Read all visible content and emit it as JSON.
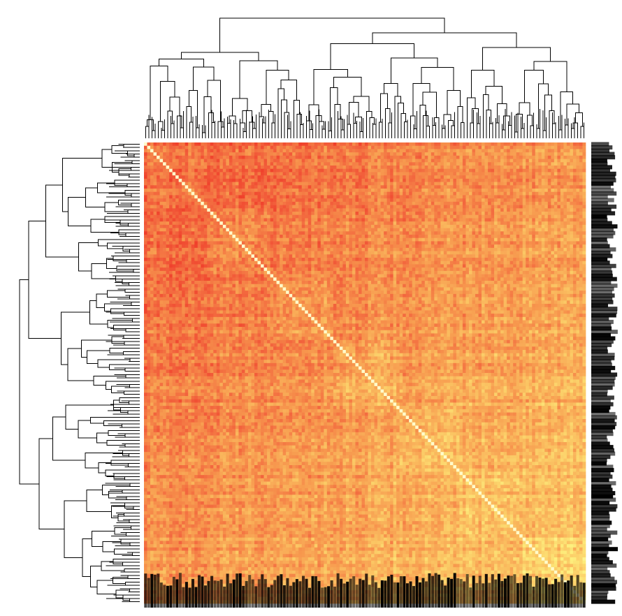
{
  "chart_data": {
    "type": "heatmap",
    "title": "",
    "xlabel": "",
    "ylabel": "",
    "n_rows": 140,
    "n_cols": 140,
    "symmetric": true,
    "diagonal_highlight": true,
    "value_range": [
      0,
      1
    ],
    "colormap": [
      "#ee2a20",
      "#f2613c",
      "#f7984e",
      "#fbc764",
      "#fdf07e",
      "#fffdd8"
    ],
    "row_clusters": 7,
    "col_clusters": 7,
    "row_dendrogram": true,
    "col_dendrogram": true,
    "row_labels_side": "right",
    "col_labels_side": "bottom",
    "tick_labels_legible": false
  },
  "colors": {
    "background": "#ffffff",
    "tree": "#000000",
    "low": "#ee2a20",
    "high": "#fffdd8"
  }
}
